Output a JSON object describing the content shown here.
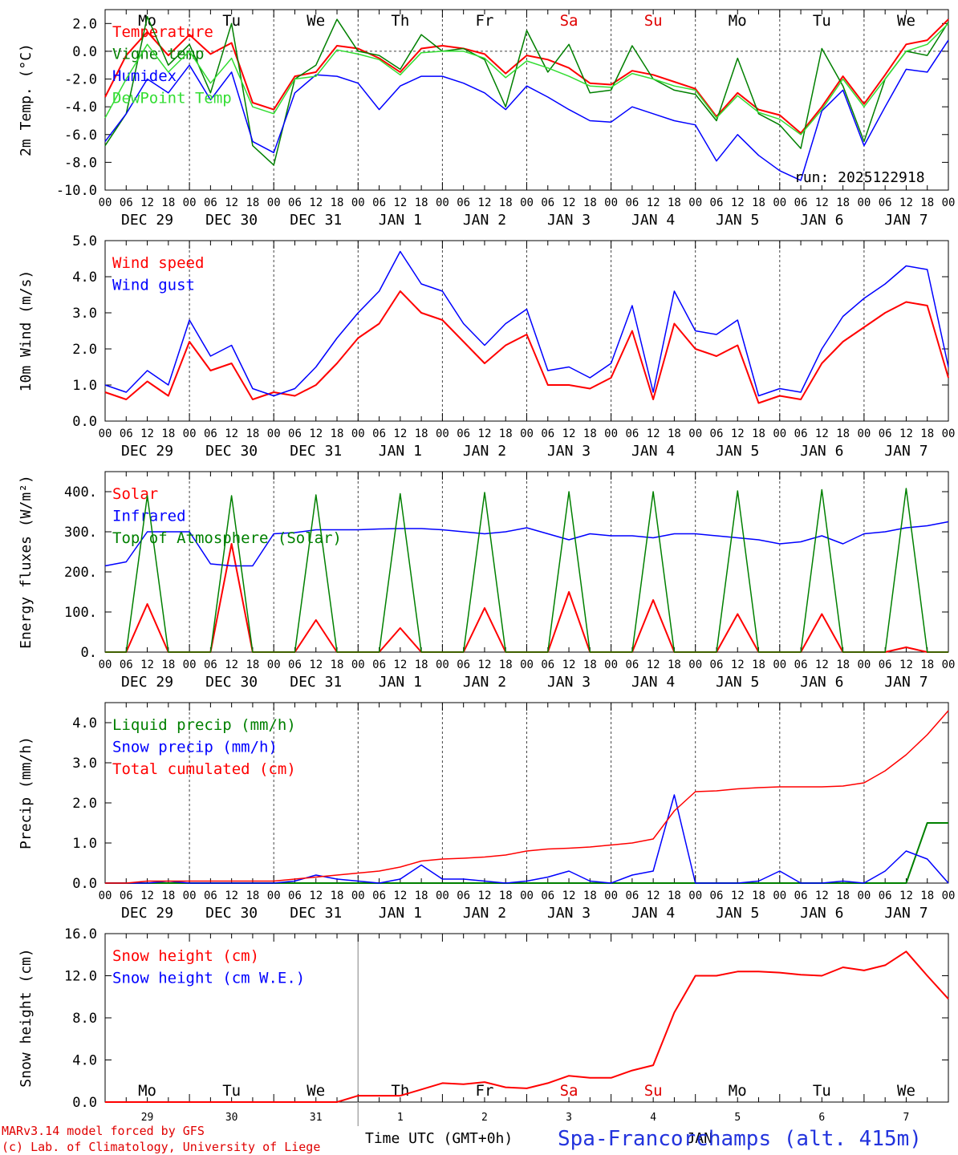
{
  "run_label": "run: 2025122918",
  "station": "Spa-Francorchamps (alt. 415m)",
  "credits": [
    "MARv3.14 model forced by GFS",
    "(c) Lab. of Climatology, University of Liege"
  ],
  "time_label": "Time UTC (GMT+0h)",
  "month_label": "JAN",
  "weekdays": [
    "Mo",
    "Tu",
    "We",
    "Th",
    "Fr",
    "Sa",
    "Su",
    "Mo",
    "Tu",
    "We"
  ],
  "weekday_colors": [
    "#000000",
    "#000000",
    "#000000",
    "#000000",
    "#000000",
    "#e00000",
    "#e00000",
    "#000000",
    "#000000",
    "#000000"
  ],
  "date_labels": [
    "DEC 29",
    "DEC 30",
    "DEC 31",
    "JAN  1",
    "JAN  2",
    "JAN  3",
    "JAN  4",
    "JAN  5",
    "JAN  6",
    "JAN  7"
  ],
  "day_numbers": [
    "29",
    "30",
    "31",
    "1",
    "2",
    "3",
    "4",
    "5",
    "6",
    "7"
  ],
  "hour_ticks": [
    "00",
    "06",
    "12",
    "18"
  ],
  "colors": {
    "red": "#ff0000",
    "green": "#008000",
    "blue": "#0000ff",
    "lightgreen": "#33dd33"
  },
  "chart_data": [
    {
      "type": "line",
      "ylabel": "2m Temp. (°C)",
      "ylim": [
        -10,
        3
      ],
      "yticks": [
        "2.0",
        "0.0",
        "-2.0",
        "-4.0",
        "-6.0",
        "-8.0",
        "-10.0"
      ],
      "ytick_values": [
        2,
        0,
        -2,
        -4,
        -6,
        -8,
        -10
      ],
      "x_hours": [
        0,
        6,
        12,
        18,
        24,
        30,
        36,
        42,
        48,
        54,
        60,
        66,
        72,
        78,
        84,
        90,
        96,
        102,
        108,
        114,
        120,
        126,
        132,
        138,
        144,
        150,
        156,
        162,
        168,
        174,
        180,
        186,
        192,
        198,
        204,
        210,
        216,
        222,
        228,
        234,
        240
      ],
      "series": [
        {
          "name": "Temperature",
          "color": "#ff0000",
          "values": [
            -3.3,
            -0.3,
            1.4,
            -0.3,
            1.2,
            -0.2,
            0.6,
            -3.7,
            -4.2,
            -1.8,
            -1.5,
            0.4,
            0.2,
            -0.5,
            -1.5,
            0.2,
            0.4,
            0.2,
            -0.2,
            -1.6,
            -0.3,
            -0.6,
            -1.2,
            -2.3,
            -2.4,
            -1.4,
            -1.7,
            -2.2,
            -2.7,
            -4.7,
            -3.0,
            -4.2,
            -4.6,
            -5.9,
            -4.0,
            -1.8,
            -3.8,
            -1.7,
            0.5,
            0.8,
            2.3
          ]
        },
        {
          "name": "Vigne temp",
          "color": "#008000",
          "values": [
            -6.8,
            -4.5,
            2.5,
            -1.0,
            0.5,
            -3.0,
            2.0,
            -6.8,
            -8.2,
            -2.0,
            -1.0,
            2.3,
            0.0,
            -0.3,
            -1.3,
            1.2,
            0.0,
            0.2,
            -0.6,
            -4.0,
            1.5,
            -1.5,
            0.5,
            -3.0,
            -2.8,
            0.4,
            -2.0,
            -2.8,
            -3.1,
            -5.0,
            -0.5,
            -4.5,
            -5.3,
            -7.0,
            0.2,
            -2.5,
            -6.5,
            -2.0,
            0.0,
            -0.3,
            2.1
          ]
        },
        {
          "name": "Humidex",
          "color": "#0000ff",
          "values": [
            -6.5,
            -4.5,
            -2.0,
            -3.0,
            -1.0,
            -3.5,
            -1.5,
            -6.5,
            -7.3,
            -3.0,
            -1.7,
            -1.8,
            -2.3,
            -4.2,
            -2.5,
            -1.8,
            -1.8,
            -2.3,
            -3.0,
            -4.2,
            -2.5,
            -3.3,
            -4.2,
            -5.0,
            -5.1,
            -4.0,
            -4.5,
            -5.0,
            -5.3,
            -7.9,
            -6.0,
            -7.5,
            -8.6,
            -9.3,
            -4.3,
            -2.8,
            -6.8,
            -4.0,
            -1.3,
            -1.5,
            0.8
          ]
        },
        {
          "name": "DewPoint Temp",
          "color": "#33dd33",
          "values": [
            -4.8,
            -2.0,
            0.5,
            -1.5,
            0.0,
            -2.3,
            -0.5,
            -4.0,
            -4.5,
            -2.0,
            -1.8,
            0.1,
            -0.2,
            -0.6,
            -1.7,
            -0.1,
            0.0,
            0.0,
            -0.5,
            -1.9,
            -0.7,
            -1.2,
            -1.8,
            -2.5,
            -2.6,
            -1.6,
            -2.0,
            -2.5,
            -2.8,
            -4.8,
            -3.2,
            -4.4,
            -4.9,
            -6.0,
            -4.2,
            -2.0,
            -4.0,
            -2.0,
            0.0,
            0.5,
            2.0
          ]
        }
      ]
    },
    {
      "type": "line",
      "ylabel": "10m Wind (m/s)",
      "ylim": [
        0,
        5
      ],
      "yticks": [
        "5.0",
        "4.0",
        "3.0",
        "2.0",
        "1.0",
        "0.0"
      ],
      "ytick_values": [
        5,
        4,
        3,
        2,
        1,
        0
      ],
      "x_hours": [
        0,
        6,
        12,
        18,
        24,
        30,
        36,
        42,
        48,
        54,
        60,
        66,
        72,
        78,
        84,
        90,
        96,
        102,
        108,
        114,
        120,
        126,
        132,
        138,
        144,
        150,
        156,
        162,
        168,
        174,
        180,
        186,
        192,
        198,
        204,
        210,
        216,
        222,
        228,
        234,
        240
      ],
      "series": [
        {
          "name": "Wind speed",
          "color": "#ff0000",
          "values": [
            0.8,
            0.6,
            1.1,
            0.7,
            2.2,
            1.4,
            1.6,
            0.6,
            0.8,
            0.7,
            1.0,
            1.6,
            2.3,
            2.7,
            3.6,
            3.0,
            2.8,
            2.2,
            1.6,
            2.1,
            2.4,
            1.0,
            1.0,
            0.9,
            1.2,
            2.5,
            0.6,
            2.7,
            2.0,
            1.8,
            2.1,
            0.5,
            0.7,
            0.6,
            1.6,
            2.2,
            2.6,
            3.0,
            3.3,
            3.2,
            1.2
          ]
        },
        {
          "name": "Wind gust",
          "color": "#0000ff",
          "values": [
            1.0,
            0.8,
            1.4,
            1.0,
            2.8,
            1.8,
            2.1,
            0.9,
            0.7,
            0.9,
            1.5,
            2.3,
            3.0,
            3.6,
            4.7,
            3.8,
            3.6,
            2.7,
            2.1,
            2.7,
            3.1,
            1.4,
            1.5,
            1.2,
            1.6,
            3.2,
            0.8,
            3.6,
            2.5,
            2.4,
            2.8,
            0.7,
            0.9,
            0.8,
            2.0,
            2.9,
            3.4,
            3.8,
            4.3,
            4.2,
            1.5
          ]
        }
      ]
    },
    {
      "type": "line",
      "ylabel": "Energy fluxes (W/m²)",
      "ylim": [
        0,
        450
      ],
      "yticks": [
        "400.",
        "300.",
        "200.",
        "100.",
        "0."
      ],
      "ytick_values": [
        400,
        300,
        200,
        100,
        0
      ],
      "x_hours": [
        0,
        6,
        12,
        18,
        24,
        30,
        36,
        42,
        48,
        54,
        60,
        66,
        72,
        78,
        84,
        90,
        96,
        102,
        108,
        114,
        120,
        126,
        132,
        138,
        144,
        150,
        156,
        162,
        168,
        174,
        180,
        186,
        192,
        198,
        204,
        210,
        216,
        222,
        228,
        234,
        240
      ],
      "series": [
        {
          "name": "Solar",
          "color": "#ff0000",
          "values": [
            0,
            0,
            120,
            0,
            0,
            0,
            270,
            0,
            0,
            0,
            80,
            0,
            0,
            0,
            60,
            0,
            0,
            0,
            110,
            0,
            0,
            0,
            150,
            0,
            0,
            0,
            130,
            0,
            0,
            0,
            95,
            0,
            0,
            0,
            95,
            0,
            0,
            0,
            12,
            0,
            0
          ]
        },
        {
          "name": "Infrared",
          "color": "#0000ff",
          "values": [
            215,
            225,
            300,
            300,
            300,
            220,
            215,
            215,
            295,
            298,
            305,
            305,
            305,
            307,
            308,
            308,
            305,
            300,
            295,
            300,
            310,
            295,
            280,
            295,
            290,
            290,
            285,
            295,
            295,
            290,
            285,
            280,
            270,
            275,
            290,
            270,
            295,
            300,
            310,
            315,
            325
          ]
        },
        {
          "name": "Top of Atmosphere (Solar)",
          "color": "#008000",
          "values": [
            0,
            0,
            390,
            0,
            0,
            0,
            390,
            0,
            0,
            0,
            392,
            0,
            0,
            0,
            395,
            0,
            0,
            0,
            398,
            0,
            0,
            0,
            400,
            0,
            0,
            0,
            400,
            0,
            0,
            0,
            402,
            0,
            0,
            0,
            405,
            0,
            0,
            0,
            408,
            0,
            0
          ]
        }
      ]
    },
    {
      "type": "line",
      "ylabel": "Precip (mm/h)",
      "ylim": [
        0,
        4.5
      ],
      "yticks": [
        "4.0",
        "3.0",
        "2.0",
        "1.0",
        "0.0"
      ],
      "ytick_values": [
        4,
        3,
        2,
        1,
        0
      ],
      "x_hours": [
        0,
        6,
        12,
        18,
        24,
        30,
        36,
        42,
        48,
        54,
        60,
        66,
        72,
        78,
        84,
        90,
        96,
        102,
        108,
        114,
        120,
        126,
        132,
        138,
        144,
        150,
        156,
        162,
        168,
        174,
        180,
        186,
        192,
        198,
        204,
        210,
        216,
        222,
        228,
        234,
        240
      ],
      "series": [
        {
          "name": "Liquid precip (mm/h)",
          "color": "#008000",
          "values": [
            0,
            0,
            0,
            0,
            0,
            0,
            0,
            0,
            0,
            0,
            0,
            0,
            0,
            0,
            0,
            0,
            0,
            0,
            0,
            0,
            0,
            0,
            0,
            0,
            0,
            0,
            0,
            0,
            0,
            0,
            0,
            0,
            0,
            0,
            0,
            0,
            0,
            0,
            0,
            1.5,
            1.5
          ]
        },
        {
          "name": "Snow precip (mm/h)",
          "color": "#0000ff",
          "values": [
            0,
            0,
            0,
            0.05,
            0,
            0,
            0,
            0,
            0,
            0.05,
            0.2,
            0.1,
            0.05,
            0,
            0.1,
            0.45,
            0.1,
            0.1,
            0.05,
            0,
            0.05,
            0.15,
            0.3,
            0.05,
            0,
            0.2,
            0.3,
            2.2,
            0,
            0,
            0,
            0.05,
            0.3,
            0,
            0,
            0.05,
            0,
            0.3,
            0.8,
            0.6,
            0
          ]
        },
        {
          "name": "Total cumulated (cm)",
          "color": "#ff0000",
          "values": [
            0,
            0,
            0.05,
            0.05,
            0.05,
            0.05,
            0.05,
            0.05,
            0.05,
            0.1,
            0.15,
            0.2,
            0.25,
            0.3,
            0.4,
            0.55,
            0.6,
            0.62,
            0.65,
            0.7,
            0.8,
            0.85,
            0.87,
            0.9,
            0.95,
            1.0,
            1.1,
            1.8,
            2.28,
            2.3,
            2.35,
            2.38,
            2.4,
            2.4,
            2.4,
            2.42,
            2.5,
            2.8,
            3.2,
            3.7,
            4.3
          ]
        }
      ]
    },
    {
      "type": "line",
      "ylabel": "Snow height (cm)",
      "ylim": [
        0,
        16
      ],
      "yticks": [
        "16.0",
        "12.0",
        "8.0",
        "4.0",
        "0.0"
      ],
      "ytick_values": [
        16,
        12,
        8,
        4,
        0
      ],
      "x_hours": [
        0,
        6,
        12,
        18,
        24,
        30,
        36,
        42,
        48,
        54,
        60,
        66,
        72,
        78,
        84,
        90,
        96,
        102,
        108,
        114,
        120,
        126,
        132,
        138,
        144,
        150,
        156,
        162,
        168,
        174,
        180,
        186,
        192,
        198,
        204,
        210,
        216,
        222,
        228,
        234,
        240
      ],
      "series": [
        {
          "name": "Snow height (cm)",
          "color": "#ff0000",
          "values": [
            0,
            0,
            0,
            0,
            0,
            0,
            0,
            0,
            0,
            0,
            0,
            0,
            0.6,
            0.6,
            0.6,
            1.2,
            1.8,
            1.7,
            1.9,
            1.4,
            1.3,
            1.8,
            2.5,
            2.3,
            2.3,
            3.0,
            3.5,
            8.5,
            12.0,
            12.0,
            12.4,
            12.4,
            12.3,
            12.1,
            12.0,
            12.8,
            12.5,
            13.0,
            14.3,
            12.0,
            9.8
          ]
        },
        {
          "name": "Snow height (cm W.E.)",
          "color": "#0000ff",
          "values": []
        }
      ]
    }
  ]
}
